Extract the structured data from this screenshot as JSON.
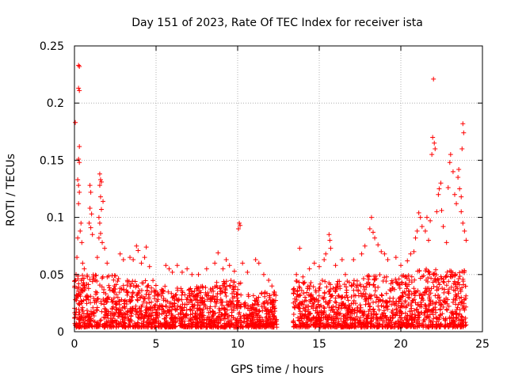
{
  "colors": {
    "series": "#ff0000",
    "grid": "#a0a0a0",
    "axis": "#000000",
    "background": "#ffffff"
  },
  "chart_data": {
    "type": "scatter",
    "title": "Day 151 of 2023, Rate Of TEC Index for receiver ista",
    "xlabel": "GPS time / hours",
    "ylabel": "ROTI / TECUs",
    "xlim": [
      0,
      25
    ],
    "ylim": [
      0,
      0.25
    ],
    "xticks": [
      0,
      5,
      10,
      15,
      20,
      25
    ],
    "xtick_labels": [
      "0",
      "5",
      "10",
      "15",
      "20",
      "25"
    ],
    "yticks": [
      0,
      0.05,
      0.1,
      0.15,
      0.2,
      0.25
    ],
    "ytick_labels": [
      "0",
      "0.05",
      "0.1",
      "0.15",
      "0.2",
      "0.25"
    ],
    "grid": true,
    "legend": "none",
    "marker": "plus",
    "data_gap_hours": [
      12.4,
      13.4
    ],
    "series": [
      {
        "name": "ROTI",
        "points": [
          [
            0.05,
            0.183
          ],
          [
            0.25,
            0.233
          ],
          [
            0.3,
            0.232
          ],
          [
            0.25,
            0.213
          ],
          [
            0.3,
            0.211
          ],
          [
            0.3,
            0.162
          ],
          [
            0.25,
            0.151
          ],
          [
            0.3,
            0.148
          ],
          [
            0.2,
            0.133
          ],
          [
            0.25,
            0.128
          ],
          [
            0.3,
            0.122
          ],
          [
            0.25,
            0.112
          ],
          [
            0.4,
            0.095
          ],
          [
            0.35,
            0.088
          ],
          [
            0.2,
            0.082
          ],
          [
            0.45,
            0.078
          ],
          [
            0.15,
            0.065
          ],
          [
            0.5,
            0.06
          ],
          [
            0.6,
            0.055
          ],
          [
            0.1,
            0.05
          ],
          [
            0.95,
            0.128
          ],
          [
            1.0,
            0.122
          ],
          [
            0.95,
            0.108
          ],
          [
            1.05,
            0.103
          ],
          [
            0.9,
            0.095
          ],
          [
            1.0,
            0.091
          ],
          [
            1.1,
            0.085
          ],
          [
            1.55,
            0.138
          ],
          [
            1.6,
            0.133
          ],
          [
            1.65,
            0.131
          ],
          [
            1.55,
            0.128
          ],
          [
            1.6,
            0.118
          ],
          [
            1.75,
            0.114
          ],
          [
            1.65,
            0.107
          ],
          [
            1.5,
            0.1
          ],
          [
            1.55,
            0.095
          ],
          [
            1.6,
            0.086
          ],
          [
            1.5,
            0.082
          ],
          [
            1.7,
            0.078
          ],
          [
            1.85,
            0.073
          ],
          [
            1.4,
            0.065
          ],
          [
            2.0,
            0.06
          ],
          [
            2.8,
            0.068
          ],
          [
            3.0,
            0.063
          ],
          [
            3.4,
            0.065
          ],
          [
            3.6,
            0.063
          ],
          [
            3.8,
            0.075
          ],
          [
            3.9,
            0.071
          ],
          [
            4.4,
            0.074
          ],
          [
            4.3,
            0.065
          ],
          [
            4.1,
            0.06
          ],
          [
            4.6,
            0.057
          ],
          [
            5.6,
            0.058
          ],
          [
            5.8,
            0.055
          ],
          [
            6.3,
            0.058
          ],
          [
            6.0,
            0.052
          ],
          [
            6.6,
            0.052
          ],
          [
            6.9,
            0.055
          ],
          [
            7.2,
            0.05
          ],
          [
            7.6,
            0.05
          ],
          [
            8.1,
            0.055
          ],
          [
            8.6,
            0.06
          ],
          [
            8.8,
            0.069
          ],
          [
            9.1,
            0.055
          ],
          [
            9.3,
            0.063
          ],
          [
            9.5,
            0.058
          ],
          [
            9.8,
            0.053
          ],
          [
            10.1,
            0.095
          ],
          [
            10.15,
            0.093
          ],
          [
            10.05,
            0.09
          ],
          [
            10.3,
            0.06
          ],
          [
            10.6,
            0.052
          ],
          [
            11.1,
            0.063
          ],
          [
            11.3,
            0.06
          ],
          [
            11.6,
            0.05
          ],
          [
            11.9,
            0.045
          ],
          [
            12.1,
            0.04
          ],
          [
            13.6,
            0.05
          ],
          [
            13.8,
            0.073
          ],
          [
            14.0,
            0.048
          ],
          [
            14.4,
            0.055
          ],
          [
            14.7,
            0.06
          ],
          [
            15.0,
            0.057
          ],
          [
            15.3,
            0.063
          ],
          [
            15.4,
            0.068
          ],
          [
            15.6,
            0.085
          ],
          [
            15.65,
            0.08
          ],
          [
            15.7,
            0.073
          ],
          [
            16.0,
            0.058
          ],
          [
            16.4,
            0.063
          ],
          [
            16.6,
            0.05
          ],
          [
            17.1,
            0.063
          ],
          [
            17.6,
            0.068
          ],
          [
            17.8,
            0.075
          ],
          [
            18.1,
            0.09
          ],
          [
            18.2,
            0.1
          ],
          [
            18.3,
            0.087
          ],
          [
            18.4,
            0.082
          ],
          [
            18.6,
            0.076
          ],
          [
            18.8,
            0.07
          ],
          [
            19.0,
            0.068
          ],
          [
            19.2,
            0.063
          ],
          [
            19.7,
            0.065
          ],
          [
            20.0,
            0.058
          ],
          [
            20.4,
            0.062
          ],
          [
            20.6,
            0.068
          ],
          [
            20.8,
            0.07
          ],
          [
            20.9,
            0.082
          ],
          [
            21.0,
            0.088
          ],
          [
            21.1,
            0.104
          ],
          [
            21.2,
            0.1
          ],
          [
            21.3,
            0.092
          ],
          [
            21.5,
            0.088
          ],
          [
            21.6,
            0.1
          ],
          [
            21.7,
            0.08
          ],
          [
            21.8,
            0.097
          ],
          [
            21.9,
            0.155
          ],
          [
            21.95,
            0.17
          ],
          [
            22.0,
            0.221
          ],
          [
            22.05,
            0.165
          ],
          [
            22.1,
            0.16
          ],
          [
            22.2,
            0.105
          ],
          [
            22.3,
            0.12
          ],
          [
            22.35,
            0.125
          ],
          [
            22.45,
            0.13
          ],
          [
            22.5,
            0.106
          ],
          [
            22.6,
            0.092
          ],
          [
            22.8,
            0.078
          ],
          [
            22.9,
            0.126
          ],
          [
            23.0,
            0.148
          ],
          [
            23.05,
            0.155
          ],
          [
            23.2,
            0.14
          ],
          [
            23.3,
            0.12
          ],
          [
            23.4,
            0.112
          ],
          [
            23.5,
            0.135
          ],
          [
            23.55,
            0.142
          ],
          [
            23.6,
            0.125
          ],
          [
            23.7,
            0.118
          ],
          [
            23.75,
            0.16
          ],
          [
            23.8,
            0.182
          ],
          [
            23.85,
            0.174
          ],
          [
            23.7,
            0.105
          ],
          [
            23.8,
            0.095
          ],
          [
            23.9,
            0.088
          ],
          [
            24.0,
            0.08
          ]
        ],
        "dense_band": [
          {
            "from": 0.0,
            "to": 3.0,
            "low": 0.004,
            "high": 0.05
          },
          {
            "from": 3.0,
            "to": 5.0,
            "low": 0.004,
            "high": 0.045
          },
          {
            "from": 5.0,
            "to": 8.5,
            "low": 0.004,
            "high": 0.04
          },
          {
            "from": 8.5,
            "to": 10.2,
            "low": 0.004,
            "high": 0.045
          },
          {
            "from": 10.2,
            "to": 12.4,
            "low": 0.004,
            "high": 0.035
          },
          {
            "from": 13.4,
            "to": 17.5,
            "low": 0.004,
            "high": 0.045
          },
          {
            "from": 17.5,
            "to": 21.0,
            "low": 0.004,
            "high": 0.05
          },
          {
            "from": 21.0,
            "to": 24.0,
            "low": 0.004,
            "high": 0.055
          }
        ]
      }
    ]
  }
}
